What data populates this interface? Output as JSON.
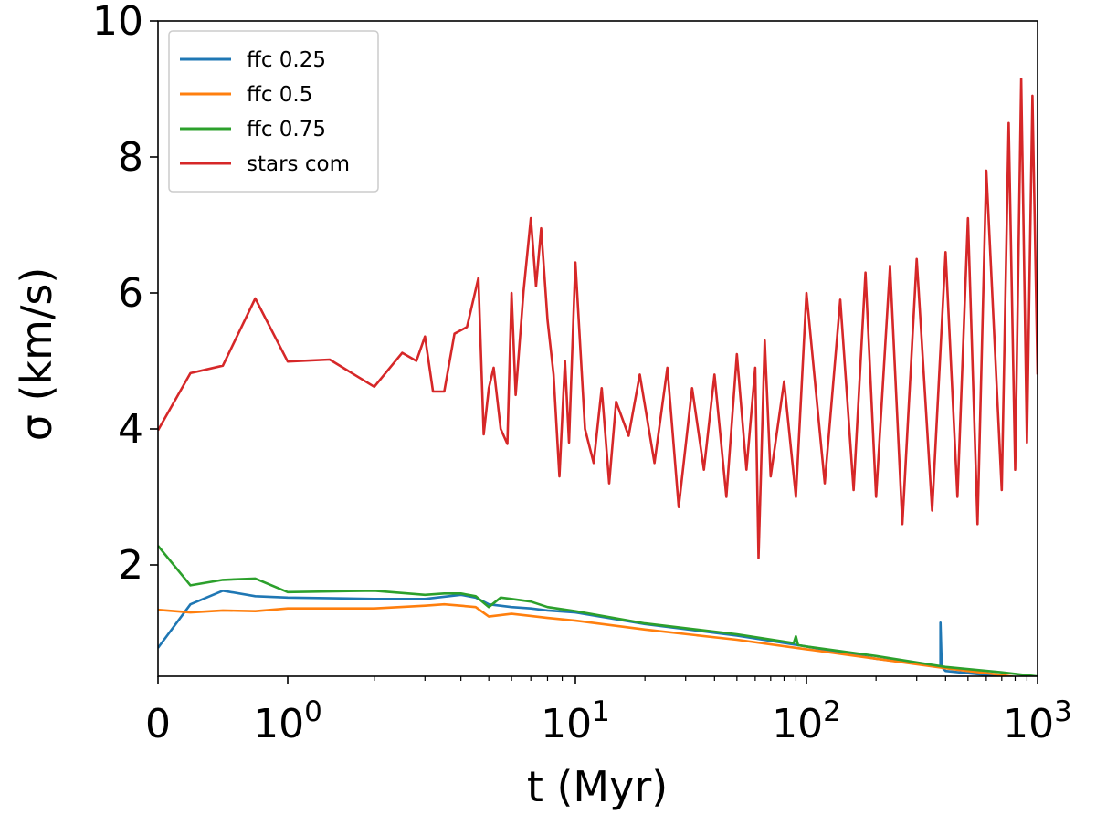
{
  "chart_data": {
    "type": "line",
    "title": "",
    "xlabel": "t (Myr)",
    "ylabel": "σ (km/s)",
    "xscale": "symlog",
    "xlim": [
      0,
      1000
    ],
    "ylim": [
      0.3,
      10
    ],
    "grid": false,
    "legend_position": "top-left",
    "x_tick_labels": [
      {
        "value": 0,
        "base": "0",
        "exp": ""
      },
      {
        "value": 1,
        "base": "10",
        "exp": "0"
      },
      {
        "value": 10,
        "base": "10",
        "exp": "1"
      },
      {
        "value": 100,
        "base": "10",
        "exp": "2"
      },
      {
        "value": 1000,
        "base": "10",
        "exp": "3"
      }
    ],
    "y_ticks": [
      2,
      4,
      6,
      8,
      10
    ],
    "y_tick_labels": [
      "2",
      "4",
      "6",
      "8",
      "10"
    ],
    "series": [
      {
        "name": "ffc 0.25",
        "color": "#1f77b4",
        "points": [
          [
            0,
            0.78
          ],
          [
            0.25,
            1.42
          ],
          [
            0.5,
            1.62
          ],
          [
            0.75,
            1.54
          ],
          [
            1.0,
            1.52
          ],
          [
            2.0,
            1.5
          ],
          [
            3.0,
            1.5
          ],
          [
            4.0,
            1.56
          ],
          [
            4.5,
            1.52
          ],
          [
            5.0,
            1.42
          ],
          [
            6.0,
            1.38
          ],
          [
            7.0,
            1.36
          ],
          [
            8.0,
            1.33
          ],
          [
            10,
            1.3
          ],
          [
            20,
            1.13
          ],
          [
            50,
            0.96
          ],
          [
            100,
            0.8
          ],
          [
            200,
            0.62
          ],
          [
            350,
            0.52
          ],
          [
            380,
            0.5
          ],
          [
            380,
            1.15
          ],
          [
            385,
            0.5
          ],
          [
            400,
            0.44
          ],
          [
            600,
            0.38
          ],
          [
            1000,
            0.3
          ]
        ]
      },
      {
        "name": "ffc 0.5",
        "color": "#ff7f0e",
        "points": [
          [
            0,
            1.34
          ],
          [
            0.25,
            1.3
          ],
          [
            0.5,
            1.33
          ],
          [
            0.75,
            1.32
          ],
          [
            1.0,
            1.36
          ],
          [
            2.0,
            1.36
          ],
          [
            3.0,
            1.4
          ],
          [
            3.5,
            1.42
          ],
          [
            4.0,
            1.4
          ],
          [
            4.5,
            1.38
          ],
          [
            5.0,
            1.24
          ],
          [
            6.0,
            1.28
          ],
          [
            7.0,
            1.25
          ],
          [
            8.0,
            1.22
          ],
          [
            10,
            1.18
          ],
          [
            20,
            1.05
          ],
          [
            50,
            0.9
          ],
          [
            100,
            0.76
          ],
          [
            200,
            0.62
          ],
          [
            400,
            0.48
          ],
          [
            700,
            0.38
          ],
          [
            1000,
            0.3
          ]
        ]
      },
      {
        "name": "ffc 0.75",
        "color": "#2ca02c",
        "points": [
          [
            0,
            2.28
          ],
          [
            0.25,
            1.7
          ],
          [
            0.5,
            1.78
          ],
          [
            0.75,
            1.8
          ],
          [
            1.0,
            1.6
          ],
          [
            2.0,
            1.62
          ],
          [
            3.0,
            1.56
          ],
          [
            3.5,
            1.58
          ],
          [
            4.0,
            1.58
          ],
          [
            4.5,
            1.54
          ],
          [
            5.0,
            1.38
          ],
          [
            5.5,
            1.52
          ],
          [
            6.0,
            1.5
          ],
          [
            7.0,
            1.46
          ],
          [
            8.0,
            1.38
          ],
          [
            10,
            1.32
          ],
          [
            20,
            1.14
          ],
          [
            50,
            0.98
          ],
          [
            88,
            0.85
          ],
          [
            90,
            0.95
          ],
          [
            92,
            0.82
          ],
          [
            100,
            0.8
          ],
          [
            200,
            0.66
          ],
          [
            400,
            0.5
          ],
          [
            700,
            0.42
          ],
          [
            1000,
            0.36
          ]
        ]
      },
      {
        "name": "stars com",
        "color": "#d62728",
        "points": [
          [
            0,
            3.98
          ],
          [
            0.25,
            4.82
          ],
          [
            0.5,
            4.93
          ],
          [
            0.75,
            5.92
          ],
          [
            1.0,
            4.99
          ],
          [
            1.4,
            5.02
          ],
          [
            2.0,
            4.62
          ],
          [
            2.5,
            5.12
          ],
          [
            2.8,
            5.0
          ],
          [
            3.0,
            5.36
          ],
          [
            3.2,
            4.55
          ],
          [
            3.5,
            4.55
          ],
          [
            3.8,
            5.4
          ],
          [
            4.2,
            5.5
          ],
          [
            4.6,
            6.22
          ],
          [
            4.8,
            3.92
          ],
          [
            5.0,
            4.6
          ],
          [
            5.2,
            4.9
          ],
          [
            5.5,
            4.0
          ],
          [
            5.8,
            3.78
          ],
          [
            6.0,
            6.0
          ],
          [
            6.2,
            4.5
          ],
          [
            6.6,
            6.02
          ],
          [
            7.0,
            7.1
          ],
          [
            7.3,
            6.1
          ],
          [
            7.6,
            6.95
          ],
          [
            8.0,
            5.6
          ],
          [
            8.4,
            4.8
          ],
          [
            8.8,
            3.3
          ],
          [
            9.2,
            5.0
          ],
          [
            9.5,
            3.8
          ],
          [
            10,
            6.45
          ],
          [
            11,
            4.0
          ],
          [
            12,
            3.5
          ],
          [
            13,
            4.6
          ],
          [
            14,
            3.2
          ],
          [
            15,
            4.4
          ],
          [
            17,
            3.9
          ],
          [
            19,
            4.8
          ],
          [
            22,
            3.5
          ],
          [
            25,
            4.9
          ],
          [
            28,
            2.85
          ],
          [
            32,
            4.6
          ],
          [
            36,
            3.4
          ],
          [
            40,
            4.8
          ],
          [
            45,
            3.0
          ],
          [
            50,
            5.1
          ],
          [
            55,
            3.4
          ],
          [
            60,
            4.9
          ],
          [
            62,
            2.1
          ],
          [
            66,
            5.3
          ],
          [
            70,
            3.3
          ],
          [
            80,
            4.7
          ],
          [
            90,
            3.0
          ],
          [
            100,
            6.0
          ],
          [
            120,
            3.2
          ],
          [
            140,
            5.9
          ],
          [
            160,
            3.1
          ],
          [
            180,
            6.3
          ],
          [
            200,
            3.0
          ],
          [
            230,
            6.4
          ],
          [
            260,
            2.6
          ],
          [
            300,
            6.5
          ],
          [
            350,
            2.8
          ],
          [
            400,
            6.6
          ],
          [
            450,
            3.0
          ],
          [
            500,
            7.1
          ],
          [
            550,
            2.6
          ],
          [
            600,
            7.8
          ],
          [
            700,
            3.1
          ],
          [
            750,
            8.5
          ],
          [
            800,
            3.4
          ],
          [
            850,
            9.15
          ],
          [
            900,
            3.8
          ],
          [
            950,
            8.9
          ],
          [
            1000,
            4.8
          ]
        ]
      }
    ]
  }
}
